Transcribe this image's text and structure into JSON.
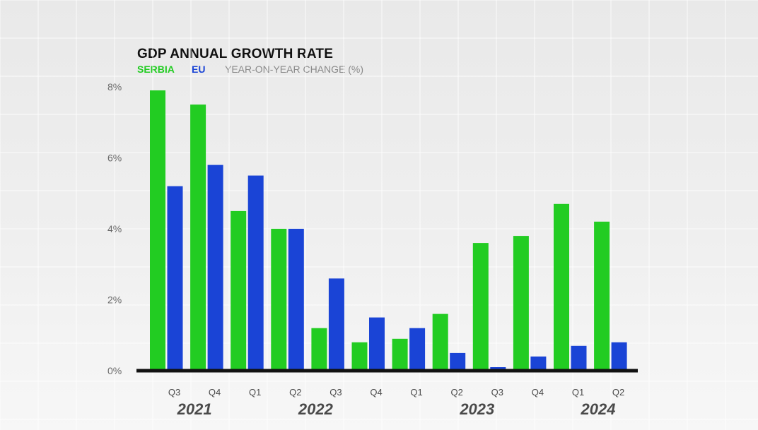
{
  "colors": {
    "serbia": "#22cc22",
    "eu": "#1a44d6",
    "axis": "#111111",
    "tick_text": "#6b6b6b",
    "year_text": "#4a4a4a"
  },
  "chart_data": {
    "type": "bar",
    "title": "GDP ANNUAL GROWTH RATE",
    "subtitle": "YEAR-ON-YEAR CHANGE (%)",
    "xlabel": "",
    "ylabel": "",
    "ylim": [
      0,
      8
    ],
    "y_ticks": [
      {
        "value": 0,
        "label": "0%"
      },
      {
        "value": 2,
        "label": "2%"
      },
      {
        "value": 4,
        "label": "4%"
      },
      {
        "value": 6,
        "label": "6%"
      },
      {
        "value": 8,
        "label": "8%"
      }
    ],
    "categories": [
      "Q3",
      "Q4",
      "Q1",
      "Q2",
      "Q3",
      "Q4",
      "Q1",
      "Q2",
      "Q3",
      "Q4",
      "Q1",
      "Q2"
    ],
    "year_labels": [
      {
        "label": "2021",
        "from": 0,
        "to": 1
      },
      {
        "label": "2022",
        "from": 2,
        "to": 5
      },
      {
        "label": "2023",
        "from": 6,
        "to": 9
      },
      {
        "label": "2024",
        "from": 10,
        "to": 11
      }
    ],
    "series": [
      {
        "name": "SERBIA",
        "color": "#22cc22",
        "values": [
          7.9,
          7.5,
          4.5,
          4.0,
          1.2,
          0.8,
          0.9,
          1.6,
          3.6,
          3.8,
          4.7,
          4.2
        ]
      },
      {
        "name": "EU",
        "color": "#1a44d6",
        "values": [
          5.2,
          5.8,
          5.5,
          4.0,
          2.6,
          1.5,
          1.2,
          0.5,
          0.1,
          0.4,
          0.7,
          0.8
        ]
      }
    ],
    "legend_position": "top-left",
    "grid": false
  }
}
